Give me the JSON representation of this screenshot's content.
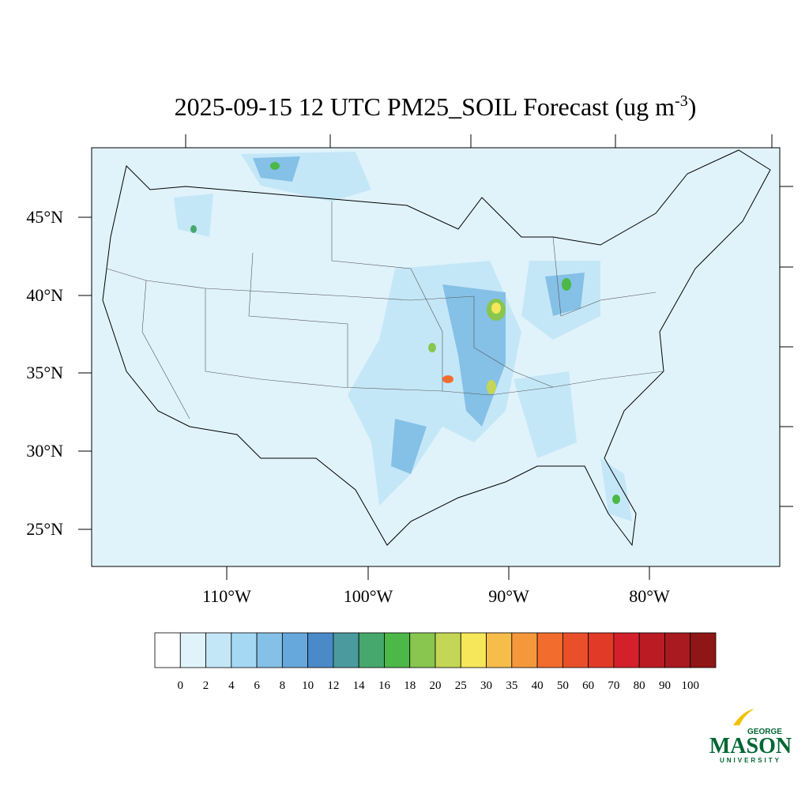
{
  "title": {
    "main": "2025-09-15 12 UTC PM25_SOIL Forecast (ug m",
    "superscript": "-3",
    "close": ")"
  },
  "latitude_labels": [
    "45°N",
    "40°N",
    "35°N",
    "30°N",
    "25°N"
  ],
  "longitude_labels": [
    "110°W",
    "100°W",
    "90°W",
    "80°W"
  ],
  "colorbar": {
    "levels": [
      "0",
      "2",
      "4",
      "6",
      "8",
      "10",
      "12",
      "14",
      "16",
      "18",
      "20",
      "25",
      "30",
      "35",
      "40",
      "50",
      "60",
      "70",
      "80",
      "90",
      "100"
    ],
    "colors": [
      "#ffffff",
      "#e0f3fb",
      "#c4e7f8",
      "#a5d8f3",
      "#85c0e6",
      "#67a8dc",
      "#4a8ac8",
      "#4a9a9e",
      "#47a86d",
      "#4bb847",
      "#88c64f",
      "#c4d655",
      "#f6e65a",
      "#f7bd4a",
      "#f5983c",
      "#f26d2d",
      "#e9502a",
      "#e13a26",
      "#d4202a",
      "#bb1c24",
      "#a81a1f",
      "#8f1616"
    ]
  },
  "logo": {
    "line1": "GEORGE",
    "line2": "MASON",
    "line3": "UNIVERSITY"
  }
}
